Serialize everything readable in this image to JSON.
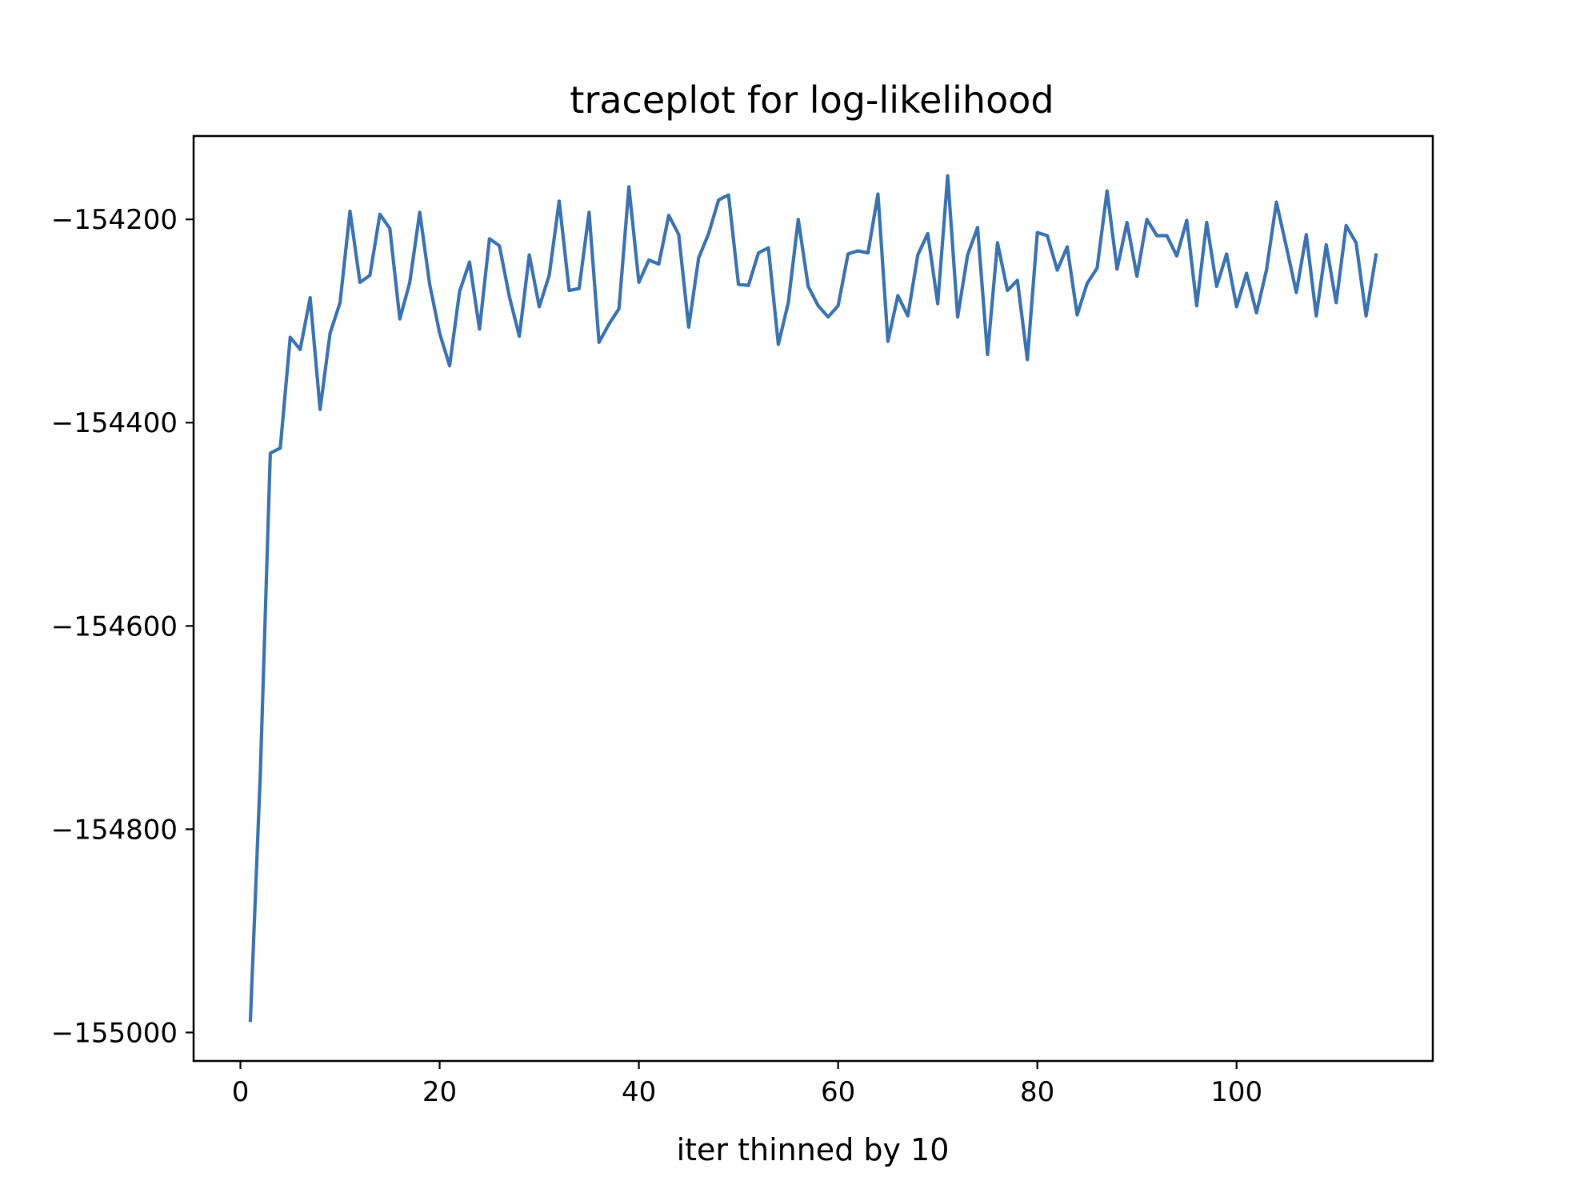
{
  "chart_data": {
    "type": "line",
    "title": "traceplot for log-likelihood",
    "xlabel": "iter thinned by 10",
    "ylabel": "",
    "xlim": [
      -4.7,
      119.7
    ],
    "ylim": [
      -155028,
      -154118
    ],
    "xticks": [
      0,
      20,
      40,
      60,
      80,
      100
    ],
    "yticks": [
      -155000,
      -154800,
      -154600,
      -154400,
      -154200
    ],
    "xtick_labels": [
      "0",
      "20",
      "40",
      "60",
      "80",
      "100"
    ],
    "ytick_labels": [
      "−155000",
      "−154800",
      "−154600",
      "−154400",
      "−154200"
    ],
    "grid": false,
    "color": "#3a72b0",
    "series": [
      {
        "x": [
          1,
          2,
          3,
          4,
          5,
          6,
          7,
          8,
          9,
          10,
          11,
          12,
          13,
          14,
          15,
          16,
          17,
          18,
          19,
          20,
          21,
          22,
          23,
          24,
          25,
          26,
          27,
          28,
          29,
          30,
          31,
          32,
          33,
          34,
          35,
          36,
          37,
          38,
          39,
          40,
          41,
          42,
          43,
          44,
          45,
          46,
          47,
          48,
          49,
          50,
          51,
          52,
          53,
          54,
          55,
          56,
          57,
          58,
          59,
          60,
          61,
          62,
          63,
          64,
          65,
          66,
          67,
          68,
          69,
          70,
          71,
          72,
          73,
          74,
          75,
          76,
          77,
          78,
          79,
          80,
          81,
          82,
          83,
          84,
          85,
          86,
          87,
          88,
          89,
          90,
          91,
          92,
          93,
          94,
          95,
          96,
          97,
          98,
          99,
          100,
          101,
          102,
          103,
          104,
          105,
          106,
          107,
          108,
          109,
          110,
          111,
          112,
          113,
          114
        ],
        "values": [
          -154988,
          -154745,
          -154430,
          -154425,
          -154316,
          -154328,
          -154277,
          -154387,
          -154312,
          -154282,
          -154192,
          -154262,
          -154255,
          -154195,
          -154209,
          -154298,
          -154262,
          -154193,
          -154264,
          -154312,
          -154344,
          -154271,
          -154242,
          -154308,
          -154219,
          -154226,
          -154276,
          -154315,
          -154235,
          -154286,
          -154255,
          -154182,
          -154270,
          -154268,
          -154193,
          -154321,
          -154303,
          -154288,
          -154168,
          -154262,
          -154240,
          -154244,
          -154196,
          -154215,
          -154306,
          -154238,
          -154214,
          -154181,
          -154176,
          -154264,
          -154265,
          -154233,
          -154228,
          -154323,
          -154282,
          -154200,
          -154266,
          -154285,
          -154296,
          -154285,
          -154234,
          -154231,
          -154233,
          -154175,
          -154320,
          -154275,
          -154295,
          -154235,
          -154214,
          -154283,
          -154157,
          -154296,
          -154235,
          -154208,
          -154333,
          -154223,
          -154270,
          -154260,
          -154338,
          -154213,
          -154216,
          -154250,
          -154227,
          -154294,
          -154263,
          -154248,
          -154172,
          -154249,
          -154203,
          -154256,
          -154200,
          -154216,
          -154216,
          -154236,
          -154201,
          -154285,
          -154203,
          -154266,
          -154234,
          -154286,
          -154253,
          -154292,
          -154250,
          -154183,
          -154227,
          -154272,
          -154215,
          -154295,
          -154225,
          -154282,
          -154206,
          -154223,
          -154295,
          -154235
        ]
      }
    ]
  }
}
